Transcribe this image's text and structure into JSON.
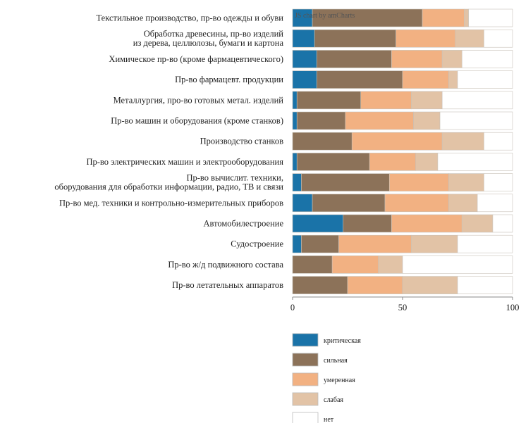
{
  "chart_data": {
    "type": "bar",
    "orientation": "horizontal",
    "stacked": true,
    "credit": "JS chart by amCharts",
    "categories": [
      [
        "Текстильное производство, пр-во одежды и обуви"
      ],
      [
        "Обработка древесины, пр-во изделий",
        "из дерева, целлюлозы, бумаги и картона"
      ],
      [
        "Химическое пр-во (кроме фармацевтического)"
      ],
      [
        "Пр-во фармацевт. продукции"
      ],
      [
        "Металлургия, про-во готовых метал. изделий"
      ],
      [
        "Пр-во машин и оборудования (кроме станков)"
      ],
      [
        "Производство станков"
      ],
      [
        "Пр-во электрических машин и электрооборудования"
      ],
      [
        "Пр-во вычислит. техники,",
        "оборудования для обработки информации, радио, ТВ и связи"
      ],
      [
        "Пр-во мед. техники и контрольно-измерительных приборов"
      ],
      [
        "Автомобилестроение"
      ],
      [
        "Судостроение"
      ],
      [
        "Пр-во ж/д подвижного состава"
      ],
      [
        "Пр-во летательных аппаратов"
      ]
    ],
    "series": [
      {
        "name": "критическая",
        "color": "#1a73a8",
        "values": [
          9,
          10,
          11,
          11,
          2,
          2,
          0,
          2,
          4,
          9,
          23,
          4,
          0,
          0
        ]
      },
      {
        "name": "сильная",
        "color": "#8c7259",
        "values": [
          50,
          37,
          34,
          39,
          29,
          22,
          27,
          33,
          40,
          33,
          22,
          17,
          18,
          25
        ]
      },
      {
        "name": "умеренная",
        "color": "#f2b182",
        "values": [
          19,
          27,
          23,
          21,
          23,
          31,
          41,
          21,
          27,
          29,
          32,
          33,
          21,
          25
        ]
      },
      {
        "name": "слабая",
        "color": "#e2c3a6",
        "values": [
          2,
          13,
          9,
          4,
          14,
          12,
          19,
          10,
          16,
          13,
          14,
          21,
          11,
          25
        ]
      },
      {
        "name": "нет",
        "color": "#ffffff",
        "values": [
          20,
          13,
          23,
          25,
          32,
          33,
          13,
          34,
          13,
          16,
          9,
          25,
          50,
          25
        ]
      }
    ],
    "xlim": [
      0,
      100
    ],
    "xticks": [
      "0",
      "50",
      "100"
    ],
    "legend_position": "bottom"
  }
}
